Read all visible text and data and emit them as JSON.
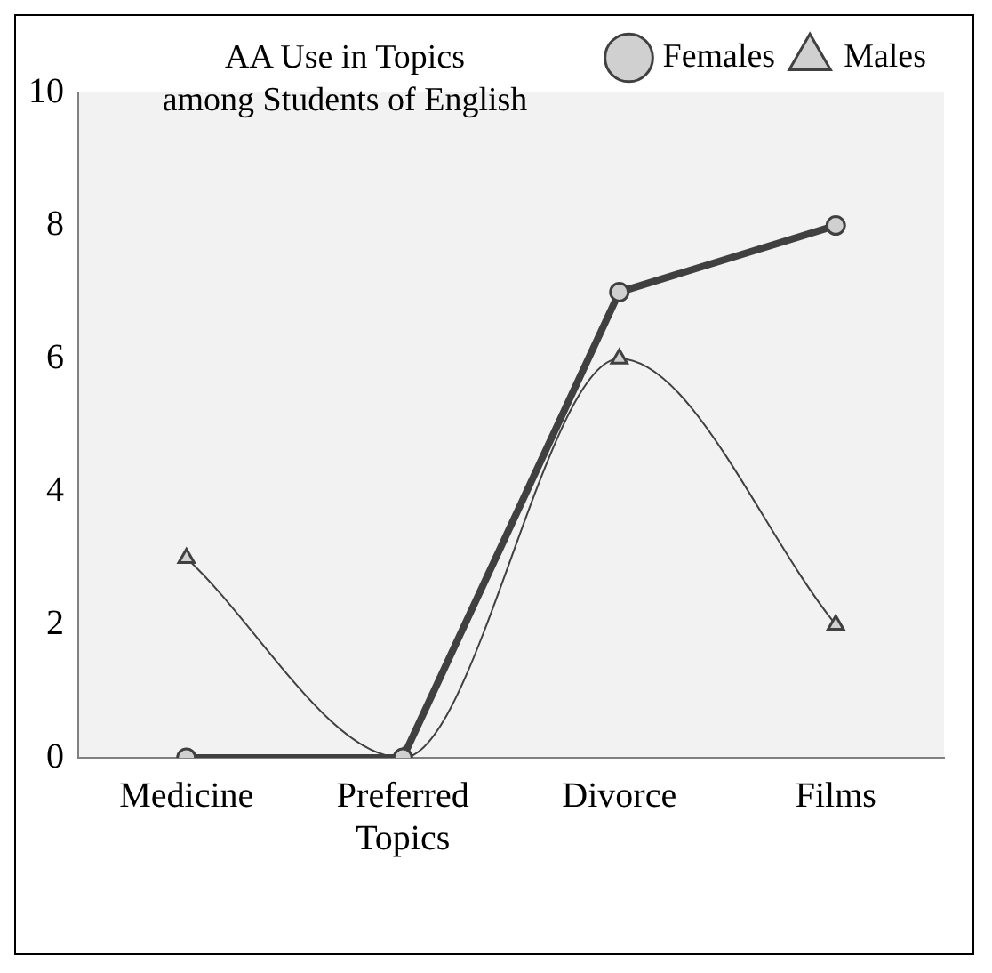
{
  "chart_data": {
    "type": "line",
    "title": "AA Use in Topics\namong Students of English",
    "categories": [
      "Medicine",
      "Preferred Topics",
      "Divorce",
      "Films"
    ],
    "series": [
      {
        "name": "Females",
        "color": "#404040",
        "values": [
          0,
          0,
          7,
          8
        ],
        "marker": "circle"
      },
      {
        "name": "Males",
        "color": "#404040",
        "values": [
          3,
          0,
          6,
          2
        ],
        "marker": "triangle"
      }
    ],
    "ylim": [
      0,
      10
    ],
    "yticks": [
      0,
      2,
      4,
      6,
      8,
      10
    ],
    "grid": false,
    "legend": "top right",
    "line_style": "solid"
  }
}
